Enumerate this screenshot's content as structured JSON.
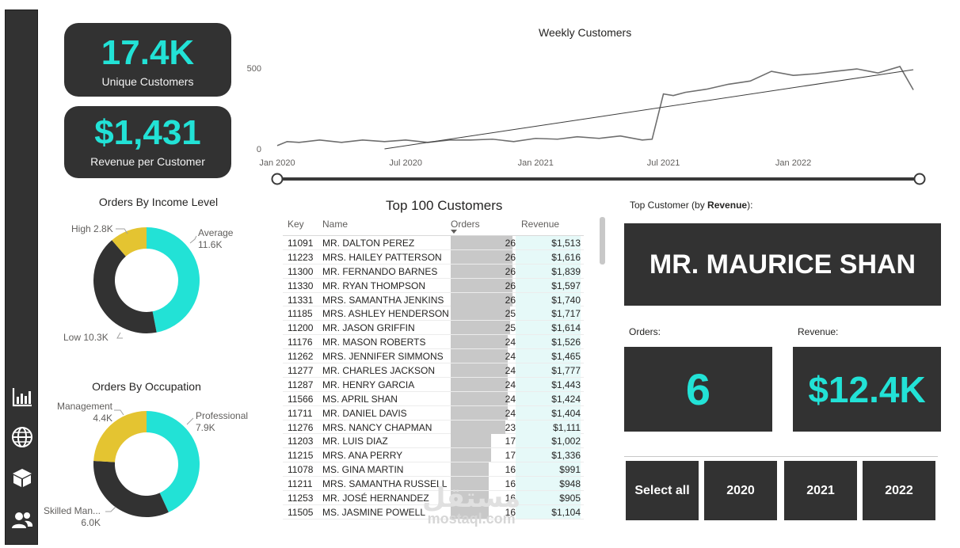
{
  "kpis": {
    "unique_customers": {
      "value": "17.4K",
      "label": "Unique Customers"
    },
    "revenue_per_customer": {
      "value": "$1,431",
      "label": "Revenue per Customer"
    }
  },
  "income_chart": {
    "title": "Orders By Income Level",
    "slices": [
      {
        "label": "Average",
        "value_text": "11.6K",
        "value": 11.6,
        "color": "#22e2d6"
      },
      {
        "label": "Low",
        "value_text": "10.3K",
        "value": 10.3,
        "color": "#323232"
      },
      {
        "label": "High",
        "value_text": "2.8K",
        "value": 2.8,
        "color": "#e4c431"
      }
    ]
  },
  "occupation_chart": {
    "title": "Orders By Occupation",
    "slices": [
      {
        "label": "Professional",
        "value_text": "7.9K",
        "value": 7.9,
        "color": "#22e2d6"
      },
      {
        "label": "Skilled Man...",
        "value_text": "6.0K",
        "value": 6.0,
        "color": "#323232"
      },
      {
        "label": "Management",
        "value_text": "4.4K",
        "value": 4.4,
        "color": "#e4c431"
      }
    ]
  },
  "chart_data": {
    "type": "line",
    "title": "Weekly Customers",
    "x_ticks": [
      "Jan 2020",
      "Jul 2020",
      "Jan 2021",
      "Jul 2021",
      "Jan 2022"
    ],
    "y_ticks": [
      "0",
      "500"
    ],
    "ylim": [
      0,
      500
    ],
    "xlim": [
      "2020-01-01",
      "2022-06-30"
    ],
    "series": [
      {
        "x": [
          "2020-01-01",
          "2020-01-15",
          "2020-02-01",
          "2020-03-01",
          "2020-04-01",
          "2020-05-01",
          "2020-06-01",
          "2020-07-01",
          "2020-08-01",
          "2020-09-01",
          "2020-10-01",
          "2020-11-01",
          "2020-12-01",
          "2021-01-01",
          "2021-02-01",
          "2021-03-01",
          "2021-04-01",
          "2021-05-01",
          "2021-06-01",
          "2021-06-15",
          "2021-07-01",
          "2021-07-15",
          "2021-08-01",
          "2021-09-01",
          "2021-10-01",
          "2021-11-01",
          "2021-12-01",
          "2022-01-01",
          "2022-02-01",
          "2022-03-01",
          "2022-04-01",
          "2022-05-01",
          "2022-06-01",
          "2022-06-20"
        ],
        "y": [
          20,
          45,
          40,
          55,
          40,
          55,
          45,
          55,
          40,
          55,
          55,
          60,
          45,
          65,
          60,
          75,
          65,
          80,
          55,
          60,
          340,
          330,
          350,
          370,
          400,
          420,
          480,
          455,
          465,
          480,
          495,
          470,
          510,
          365
        ]
      },
      {
        "x": [
          "2020-06-01",
          "2022-06-20"
        ],
        "y": [
          0,
          490
        ]
      }
    ],
    "grid": false
  },
  "table": {
    "title": "Top 100 Customers",
    "columns": [
      "Key",
      "Name",
      "Orders",
      "Revenue"
    ],
    "rows": [
      {
        "key": "11091",
        "name": "MR. DALTON PEREZ",
        "orders": 26,
        "revenue": "$1,513"
      },
      {
        "key": "11223",
        "name": "MRS. HAILEY PATTERSON",
        "orders": 26,
        "revenue": "$1,616"
      },
      {
        "key": "11300",
        "name": "MR. FERNANDO BARNES",
        "orders": 26,
        "revenue": "$1,839"
      },
      {
        "key": "11330",
        "name": "MR. RYAN THOMPSON",
        "orders": 26,
        "revenue": "$1,597"
      },
      {
        "key": "11331",
        "name": "MRS. SAMANTHA JENKINS",
        "orders": 26,
        "revenue": "$1,740"
      },
      {
        "key": "11185",
        "name": "MRS. ASHLEY HENDERSON",
        "orders": 25,
        "revenue": "$1,717"
      },
      {
        "key": "11200",
        "name": "MR. JASON GRIFFIN",
        "orders": 25,
        "revenue": "$1,614"
      },
      {
        "key": "11176",
        "name": "MR. MASON ROBERTS",
        "orders": 24,
        "revenue": "$1,526"
      },
      {
        "key": "11262",
        "name": "MRS. JENNIFER SIMMONS",
        "orders": 24,
        "revenue": "$1,465"
      },
      {
        "key": "11277",
        "name": "MR. CHARLES JACKSON",
        "orders": 24,
        "revenue": "$1,777"
      },
      {
        "key": "11287",
        "name": "MR. HENRY GARCIA",
        "orders": 24,
        "revenue": "$1,443"
      },
      {
        "key": "11566",
        "name": "MS. APRIL SHAN",
        "orders": 24,
        "revenue": "$1,424"
      },
      {
        "key": "11711",
        "name": "MR. DANIEL DAVIS",
        "orders": 24,
        "revenue": "$1,404"
      },
      {
        "key": "11276",
        "name": "MRS. NANCY CHAPMAN",
        "orders": 23,
        "revenue": "$1,111"
      },
      {
        "key": "11203",
        "name": "MR. LUIS DIAZ",
        "orders": 17,
        "revenue": "$1,002"
      },
      {
        "key": "11215",
        "name": "MRS. ANA PERRY",
        "orders": 17,
        "revenue": "$1,336"
      },
      {
        "key": "11078",
        "name": "MS. GINA MARTIN",
        "orders": 16,
        "revenue": "$991"
      },
      {
        "key": "11211",
        "name": "MRS. SAMANTHA RUSSELL",
        "orders": 16,
        "revenue": "$948"
      },
      {
        "key": "11253",
        "name": "MR. JOSÉ HERNANDEZ",
        "orders": 16,
        "revenue": "$905"
      },
      {
        "key": "11505",
        "name": "MS. JASMINE POWELL",
        "orders": 16,
        "revenue": "$1,104"
      }
    ]
  },
  "top_customer": {
    "label_prefix": "Top Customer (by ",
    "label_bold": "Revenue",
    "label_suffix": "):",
    "name": "MR. MAURICE SHAN",
    "orders_label": "Orders:",
    "orders_value": "6",
    "revenue_label": "Revenue:",
    "revenue_value": "$12.4K"
  },
  "year_slicer": [
    "Select all",
    "2020",
    "2021",
    "2022"
  ],
  "nav_icons": [
    "bar-chart-icon",
    "globe-icon",
    "box-icon",
    "users-icon"
  ],
  "watermark": {
    "arabic": "مستقل",
    "latin": "mostaql.com"
  },
  "colors": {
    "accent": "#22e2d6",
    "dark": "#323232",
    "yellow": "#e4c431"
  }
}
